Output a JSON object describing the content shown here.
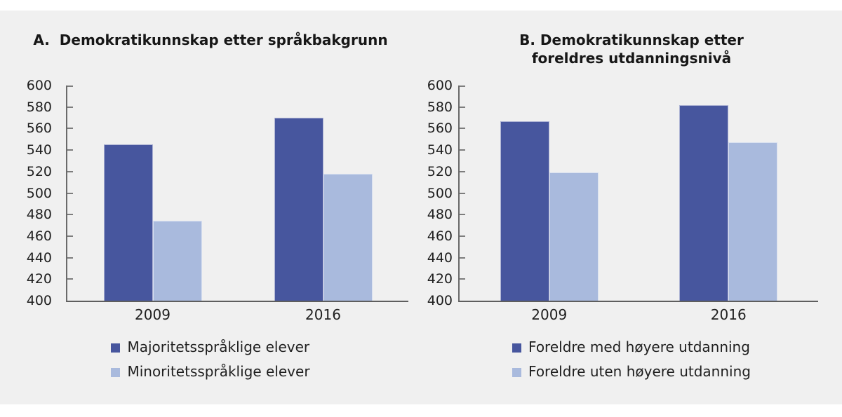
{
  "figure": {
    "background_color": "#f0f0f0",
    "page_color": "#ffffff",
    "axis_color": "#6a6a6a",
    "text_color": "#1f1f1f"
  },
  "chart_data": [
    {
      "type": "bar",
      "title": "A.  Demokratikunnskap etter språkbakgrunn",
      "categories": [
        "2009",
        "2016"
      ],
      "series": [
        {
          "name": "Majoritetsspråklige elever",
          "color": "#47569E",
          "values": [
            545,
            570
          ]
        },
        {
          "name": "Minoritetsspråklige elever",
          "color": "#A9BADD",
          "values": [
            474,
            518
          ]
        }
      ],
      "xlabel": "",
      "ylabel": "",
      "ylim": [
        400,
        600
      ],
      "ytick_step": 20,
      "grid": false,
      "legend_position": "bottom"
    },
    {
      "type": "bar",
      "title": "B. Demokratikunnskap etter foreldres utdanningsnivå",
      "categories": [
        "2009",
        "2016"
      ],
      "series": [
        {
          "name": "Foreldre med høyere utdanning",
          "color": "#47569E",
          "values": [
            567,
            582
          ]
        },
        {
          "name": "Foreldre uten høyere utdanning",
          "color": "#A9BADD",
          "values": [
            519,
            547
          ]
        }
      ],
      "xlabel": "",
      "ylabel": "",
      "ylim": [
        400,
        600
      ],
      "ytick_step": 20,
      "grid": false,
      "legend_position": "bottom"
    }
  ]
}
